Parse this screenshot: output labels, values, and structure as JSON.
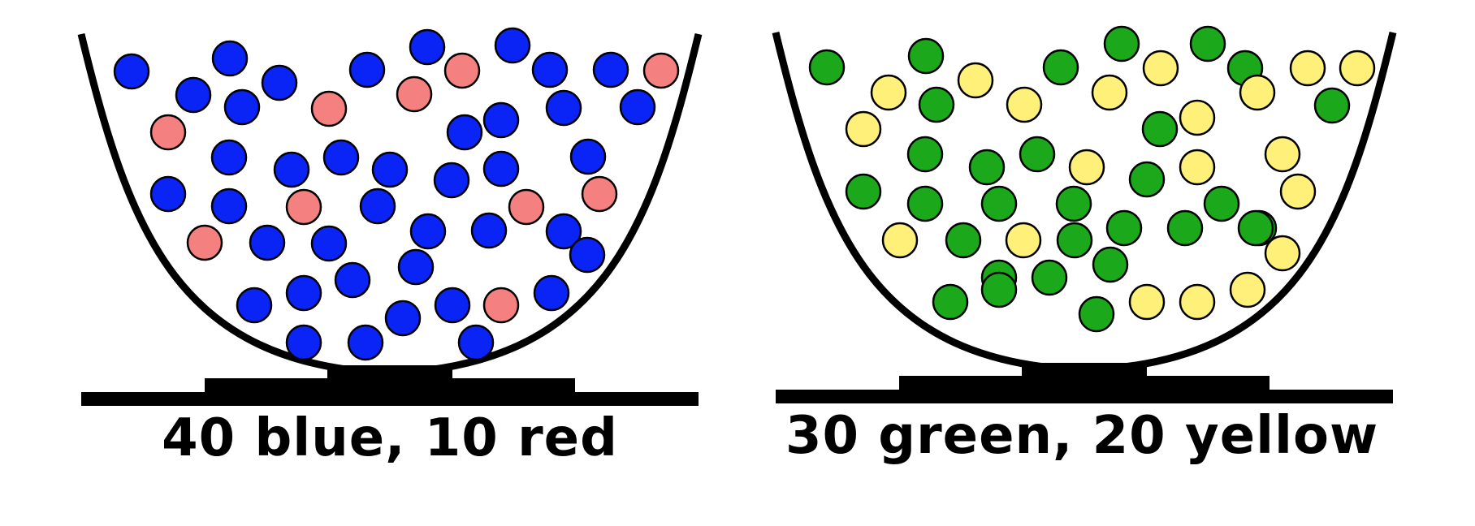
{
  "colors": {
    "blue": "#0a24f5",
    "red": "#f58080",
    "green": "#1ba81b",
    "yellow": "#fff07a",
    "outline": "#000000",
    "background": "#ffffff"
  },
  "bowls": [
    {
      "caption": "40 blue, 10 red",
      "ball_counts": {
        "blue": 40,
        "red": 10
      },
      "ball_colors": [
        "blue",
        "red"
      ]
    },
    {
      "caption": "30 green, 20 yellow",
      "ball_counts": {
        "green": 30,
        "yellow": 20
      },
      "ball_colors": [
        "green",
        "yellow"
      ]
    }
  ]
}
